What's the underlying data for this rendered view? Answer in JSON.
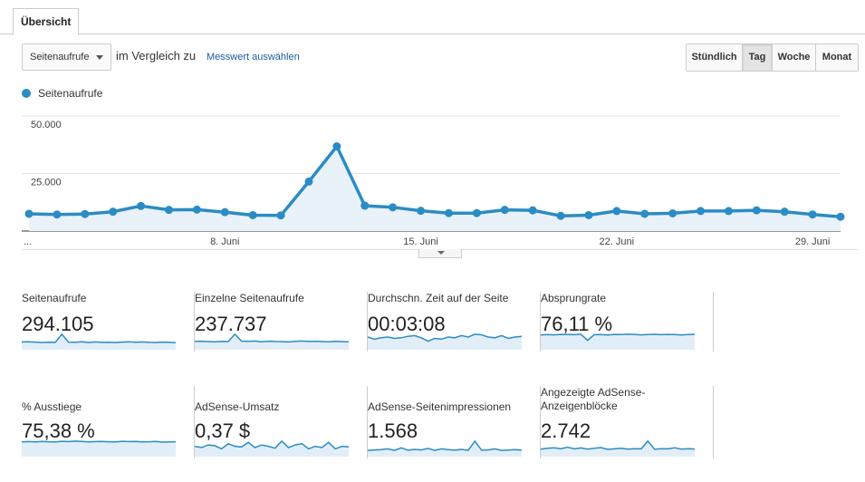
{
  "tabs": [
    {
      "label": "Übersicht",
      "active": true
    }
  ],
  "controls": {
    "metric_select": "Seitenaufrufe",
    "compare_text": "im Vergleich zu",
    "pick_metric_link": "Messwert auswählen",
    "granularity": [
      {
        "label": "Stündlich",
        "active": false
      },
      {
        "label": "Tag",
        "active": true
      },
      {
        "label": "Woche",
        "active": false
      },
      {
        "label": "Monat",
        "active": false
      }
    ]
  },
  "legend": {
    "label": "Seitenaufrufe",
    "color": "#2b8cc4"
  },
  "chart_data": {
    "type": "line",
    "series": [
      {
        "name": "Seitenaufrufe",
        "color": "#2b8cc4",
        "values": [
          7500,
          7200,
          7400,
          8400,
          10900,
          9200,
          9300,
          8200,
          6900,
          6800,
          21500,
          36800,
          11000,
          10300,
          8800,
          7800,
          7800,
          9200,
          9000,
          6600,
          6900,
          8700,
          7500,
          7700,
          8700,
          8700,
          9000,
          8400,
          7200,
          6200
        ]
      }
    ],
    "yticks": [
      "50.000",
      "25.000"
    ],
    "ytick_values": [
      50000,
      25000
    ],
    "ylim": [
      0,
      50000
    ],
    "xticks": [
      "...",
      "8. Juni",
      "15. Juni",
      "22. Juni",
      "29. Juni"
    ],
    "xtick_indices": [
      0,
      7,
      14,
      21,
      28
    ],
    "grid": true
  },
  "scorecards": [
    {
      "label": "Seitenaufrufe",
      "value": "294.105",
      "spark": [
        7,
        7.2,
        6.9,
        6.5,
        6.7,
        6.6,
        14,
        6.9,
        6.8,
        7.1,
        6.5,
        7,
        6.6,
        6.8,
        6.5,
        6.9,
        7.1,
        6.8,
        7,
        6.6,
        6.5,
        6.9,
        6.7,
        6.4
      ]
    },
    {
      "label": "Einzelne Seitenaufrufe",
      "value": "237.737",
      "spark": [
        7,
        7.1,
        6.8,
        6.6,
        6.9,
        6.8,
        13,
        7.2,
        7,
        7.3,
        6.6,
        7.1,
        6.9,
        6.8,
        6.5,
        7,
        7.3,
        6.9,
        7.1,
        6.8,
        6.6,
        7,
        6.8,
        6.5
      ]
    },
    {
      "label": "Durchschn. Zeit auf der Seite",
      "value": "00:03:08",
      "spark": [
        9,
        7.5,
        8.5,
        9,
        8,
        8.5,
        9.5,
        10,
        8.5,
        6,
        8,
        7.5,
        9,
        8.5,
        10,
        9,
        11,
        10.5,
        9,
        8.5,
        10,
        8,
        9,
        9.5
      ]
    },
    {
      "label": "Absprungrate",
      "value": "76,11 %",
      "spark": [
        14,
        14.5,
        14.2,
        14.6,
        14.4,
        14.3,
        14.8,
        9,
        14.3,
        14.5,
        14,
        14.6,
        14.4,
        14.8,
        14.6,
        14.2,
        14.5,
        14.7,
        14.3,
        14.6,
        14.4,
        14.1,
        14.5,
        14.7
      ]
    },
    {
      "label": "% Ausstiege",
      "value": "75,38 %",
      "spark": [
        14,
        14.3,
        14.1,
        14.5,
        14.2,
        14.1,
        14.6,
        14.3,
        14.8,
        14.4,
        14,
        14.3,
        14.5,
        14.2,
        14.1,
        14.6,
        14.3,
        14.4,
        14,
        14.2,
        14.5,
        13.8,
        14,
        14.2
      ]
    },
    {
      "label": "AdSense-Umsatz",
      "value": "0,37 $",
      "spark": [
        8,
        7,
        9,
        8.5,
        6,
        10,
        8,
        7.5,
        11,
        7,
        9,
        8,
        6.5,
        12,
        7,
        9,
        10,
        6,
        8,
        7,
        11,
        6,
        8,
        7.5
      ]
    },
    {
      "label": "AdSense-Seitenimpressionen",
      "value": "1.568",
      "spark": [
        6,
        6.5,
        6.8,
        7.5,
        6,
        8.5,
        6.2,
        7,
        6.5,
        8,
        6,
        7.5,
        6.8,
        6.2,
        7,
        6,
        15,
        6.2,
        6.5,
        7.5,
        6,
        6.4,
        6.8,
        6.2
      ]
    },
    {
      "label": "Angezeigte AdSense-Anzeigenblöcke",
      "value": "2.742",
      "spark": [
        6.8,
        7.5,
        8,
        7.2,
        8.5,
        7,
        7.8,
        6.8,
        7.5,
        8.2,
        6.5,
        7,
        7.6,
        6.8,
        7.2,
        7,
        14,
        6.6,
        7.2,
        7,
        8,
        6.8,
        7.2,
        6.9
      ]
    }
  ]
}
